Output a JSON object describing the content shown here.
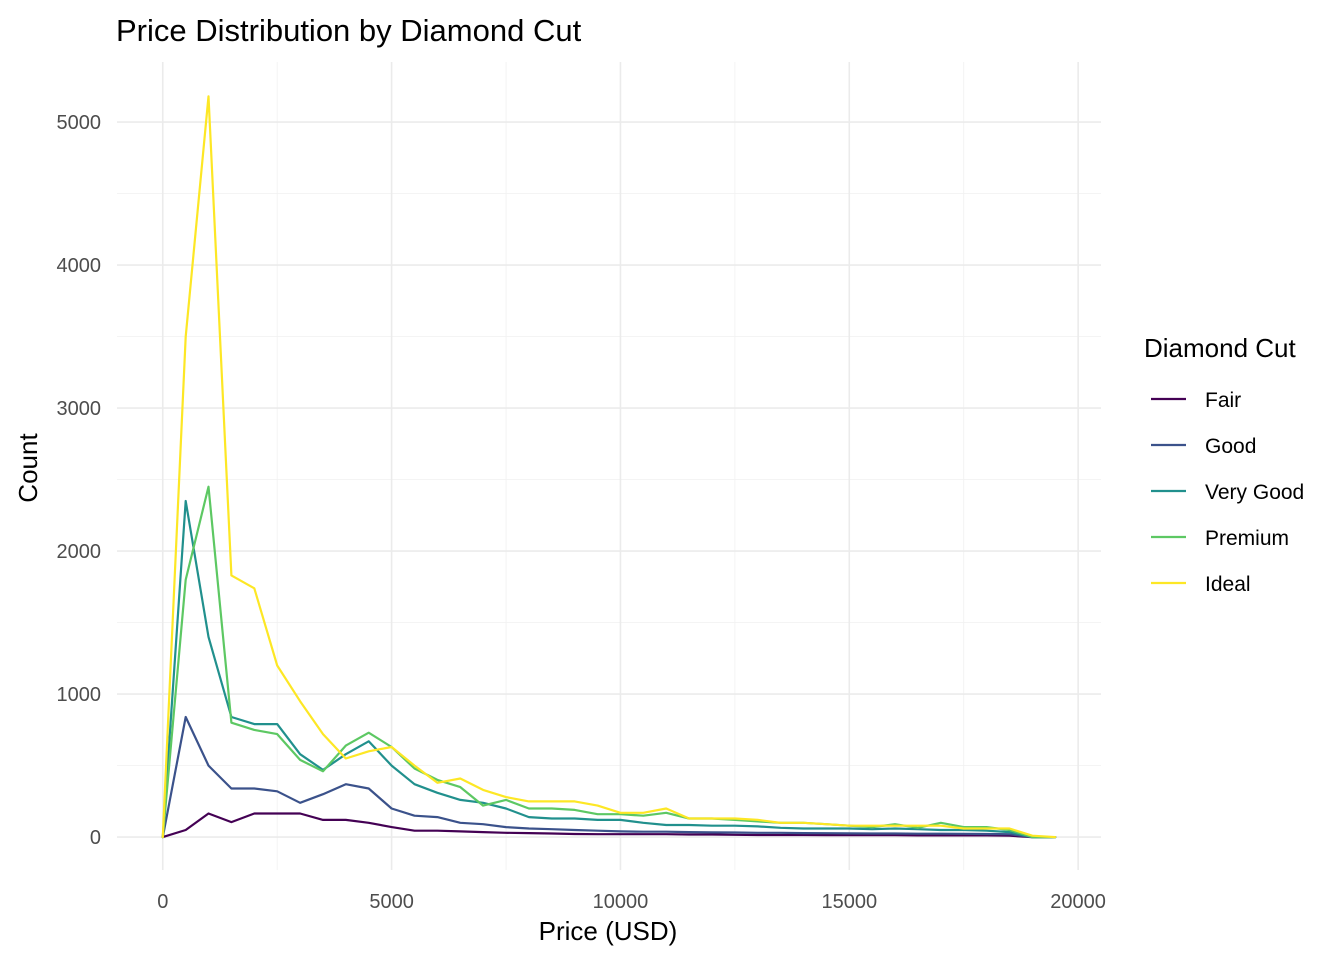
{
  "chart_data": {
    "type": "line",
    "title": "Price Distribution by Diamond Cut",
    "xlabel": "Price (USD)",
    "ylabel": "Count",
    "xlim": [
      -1000,
      20500
    ],
    "ylim": [
      -230,
      5420
    ],
    "x_ticks": [
      0,
      5000,
      10000,
      15000,
      20000
    ],
    "y_ticks": [
      0,
      1000,
      2000,
      3000,
      4000,
      5000
    ],
    "grid": true,
    "legend_title": "Diamond Cut",
    "legend_position": "right",
    "x": [
      0,
      500,
      1000,
      1500,
      2000,
      2500,
      3000,
      3500,
      4000,
      4500,
      5000,
      5500,
      6000,
      6500,
      7000,
      7500,
      8000,
      8500,
      9000,
      9500,
      10000,
      10500,
      11000,
      11500,
      12000,
      12500,
      13000,
      13500,
      14000,
      14500,
      15000,
      15500,
      16000,
      16500,
      17000,
      17500,
      18000,
      18500,
      19000,
      19500
    ],
    "series": [
      {
        "name": "Fair",
        "color": "#440154",
        "values": [
          0,
          50,
          165,
          105,
          165,
          165,
          165,
          120,
          120,
          100,
          70,
          45,
          45,
          40,
          35,
          30,
          28,
          25,
          22,
          20,
          20,
          20,
          20,
          18,
          18,
          16,
          15,
          15,
          15,
          14,
          14,
          13,
          13,
          12,
          12,
          12,
          12,
          10,
          0,
          0
        ]
      },
      {
        "name": "Good",
        "color": "#3b528b",
        "values": [
          0,
          840,
          500,
          340,
          340,
          320,
          240,
          300,
          370,
          340,
          200,
          150,
          140,
          100,
          90,
          70,
          60,
          55,
          50,
          45,
          40,
          38,
          38,
          35,
          33,
          32,
          30,
          30,
          28,
          27,
          26,
          25,
          25,
          24,
          24,
          23,
          22,
          20,
          0,
          0
        ]
      },
      {
        "name": "Very Good",
        "color": "#21908d",
        "values": [
          0,
          2350,
          1400,
          840,
          790,
          790,
          580,
          470,
          580,
          670,
          500,
          370,
          310,
          260,
          240,
          200,
          140,
          130,
          130,
          120,
          120,
          100,
          85,
          85,
          80,
          80,
          75,
          65,
          60,
          60,
          60,
          55,
          60,
          55,
          50,
          50,
          45,
          35,
          0,
          0
        ]
      },
      {
        "name": "Premium",
        "color": "#5dc863",
        "values": [
          0,
          1800,
          2450,
          800,
          750,
          720,
          540,
          460,
          640,
          730,
          630,
          480,
          400,
          350,
          220,
          260,
          200,
          200,
          190,
          160,
          160,
          150,
          170,
          130,
          130,
          120,
          110,
          100,
          100,
          90,
          80,
          70,
          90,
          65,
          100,
          70,
          70,
          50,
          0,
          0
        ]
      },
      {
        "name": "Ideal",
        "color": "#fde725",
        "values": [
          0,
          3500,
          5180,
          1830,
          1740,
          1200,
          950,
          720,
          550,
          600,
          630,
          500,
          380,
          410,
          330,
          280,
          250,
          250,
          250,
          220,
          170,
          170,
          200,
          130,
          130,
          130,
          120,
          100,
          100,
          90,
          80,
          80,
          80,
          80,
          80,
          60,
          60,
          60,
          10,
          0
        ]
      }
    ]
  }
}
